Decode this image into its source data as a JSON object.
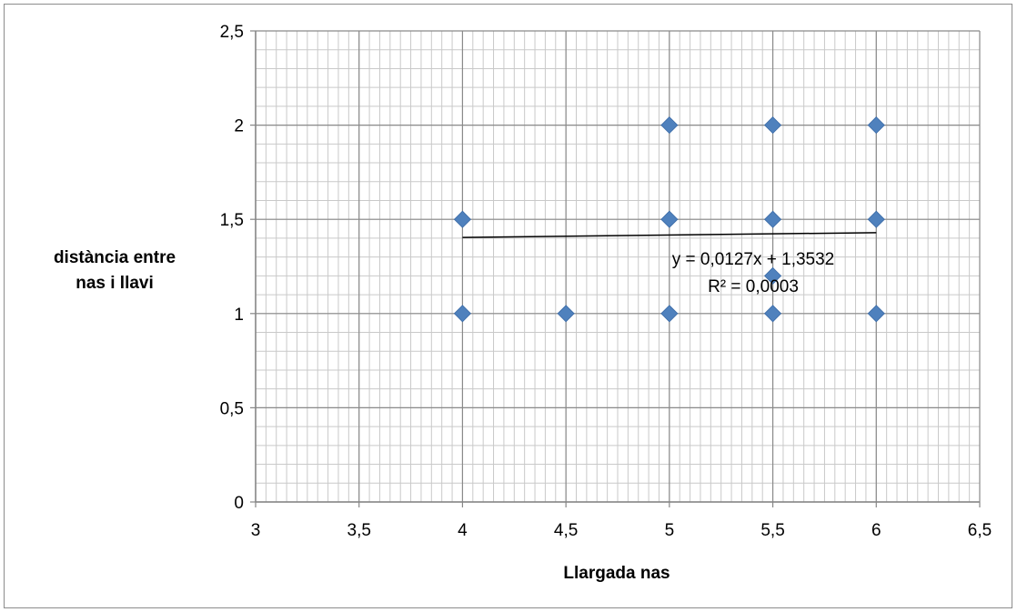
{
  "chart_data": {
    "type": "scatter",
    "title": "",
    "xlabel": "Llargada nas",
    "ylabel_lines": [
      "distància entre",
      "nas i llavi"
    ],
    "xlim": [
      3,
      6.5
    ],
    "ylim": [
      0,
      2.5
    ],
    "x_ticks": [
      "3",
      "3,5",
      "4",
      "4,5",
      "5",
      "5,5",
      "6",
      "6,5"
    ],
    "y_ticks": [
      "0",
      "0,5",
      "1",
      "1,5",
      "2",
      "2,5"
    ],
    "grid": true,
    "series": [
      {
        "marker": "diamond",
        "color": "#4f81bd",
        "points": [
          {
            "x": 4,
            "y": 1.5
          },
          {
            "x": 4,
            "y": 1
          },
          {
            "x": 4.5,
            "y": 1
          },
          {
            "x": 5,
            "y": 2
          },
          {
            "x": 5,
            "y": 1.5
          },
          {
            "x": 5,
            "y": 1
          },
          {
            "x": 5.5,
            "y": 2
          },
          {
            "x": 5.5,
            "y": 1.5
          },
          {
            "x": 5.5,
            "y": 1.2
          },
          {
            "x": 5.5,
            "y": 1
          },
          {
            "x": 6,
            "y": 2
          },
          {
            "x": 6,
            "y": 1.5
          },
          {
            "x": 6,
            "y": 1
          }
        ]
      }
    ],
    "trendline": {
      "slope": 0.0127,
      "intercept": 1.3532,
      "x_range": [
        4,
        6
      ],
      "color": "#000000",
      "equation": "y = 0,0127x + 1,3532",
      "r_squared": "R² = 0,0003"
    }
  }
}
